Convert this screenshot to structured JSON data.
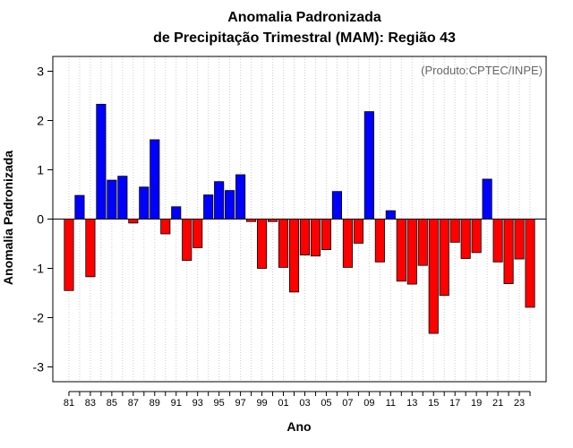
{
  "chart_data": {
    "type": "bar",
    "title_line1": "Anomalia Padronizada",
    "title_line2": "de Precipitação Trimestral (MAM): Região 43",
    "xlabel": "Ano",
    "ylabel": "Anomalia Padronizada",
    "credit": "(Produto:CPTEC/INPE)",
    "ylim": [
      -3.3,
      3.3
    ],
    "yticks": [
      "-3",
      "-2",
      "-1",
      "0",
      "1",
      "2",
      "3"
    ],
    "xlim": [
      1979.5,
      2025.5
    ],
    "positive_color": "#0000ff",
    "negative_color": "#ff0000",
    "years": [
      1981,
      1982,
      1983,
      1984,
      1985,
      1986,
      1987,
      1988,
      1989,
      1990,
      1991,
      1992,
      1993,
      1994,
      1995,
      1996,
      1997,
      1998,
      1999,
      2000,
      2001,
      2002,
      2003,
      2004,
      2005,
      2006,
      2007,
      2008,
      2009,
      2010,
      2011,
      2012,
      2013,
      2014,
      2015,
      2016,
      2017,
      2018,
      2019,
      2020,
      2021,
      2022,
      2023,
      2024
    ],
    "categories": [
      "81",
      "",
      "83",
      "",
      "85",
      "",
      "87",
      "",
      "89",
      "",
      "91",
      "",
      "93",
      "",
      "95",
      "",
      "97",
      "",
      "99",
      "",
      "01",
      "",
      "03",
      "",
      "05",
      "",
      "07",
      "",
      "09",
      "",
      "11",
      "",
      "13",
      "",
      "15",
      "",
      "17",
      "",
      "19",
      "",
      "21",
      "",
      "23",
      ""
    ],
    "values": [
      -1.45,
      0.48,
      -1.17,
      2.33,
      0.79,
      0.87,
      -0.08,
      0.65,
      1.61,
      -0.3,
      0.25,
      -0.84,
      -0.58,
      0.49,
      0.76,
      0.58,
      0.9,
      -0.05,
      -1.0,
      -0.05,
      -0.98,
      -1.48,
      -0.73,
      -0.75,
      -0.62,
      0.56,
      -0.98,
      -0.49,
      2.18,
      -0.87,
      0.17,
      -1.26,
      -1.32,
      -0.94,
      -2.32,
      -1.55,
      -0.47,
      -0.8,
      -0.68,
      0.81,
      -0.87,
      -1.31,
      -0.81,
      -1.79
    ]
  }
}
